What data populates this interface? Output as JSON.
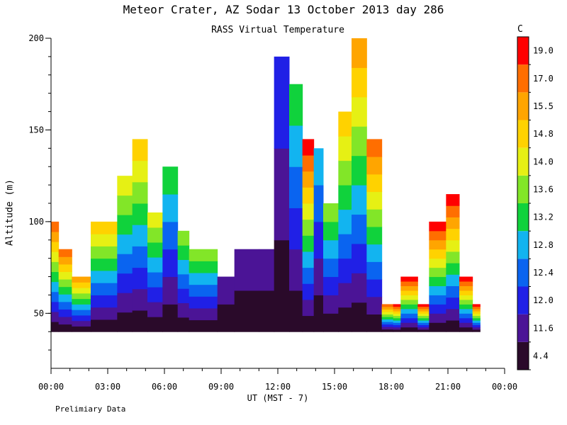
{
  "title": "Meteor Crater, AZ  Sodar  13 October 2013  day 286",
  "footnote": "Prelimiary Data",
  "colors": {
    "bins": [
      "#2a0a2a",
      "#4b1496",
      "#2020e6",
      "#0a64f0",
      "#12b4f0",
      "#10d23c",
      "#82e628",
      "#e6f014",
      "#ffd200",
      "#ffa500",
      "#ff6e00",
      "#ff0000"
    ]
  },
  "chart_data": {
    "type": "heatmap",
    "title": "RASS Virtual Temperature",
    "xlabel": "UT  (MST - 7)",
    "ylabel": "Altitude (m)",
    "xlim": [
      0,
      24
    ],
    "ylim": [
      20,
      200
    ],
    "x_tick_values": [
      0,
      3,
      6,
      9,
      12,
      15,
      18,
      21,
      24
    ],
    "x_tick_labels": [
      "00:00",
      "03:00",
      "06:00",
      "09:00",
      "12:00",
      "15:00",
      "18:00",
      "21:00",
      "00:00"
    ],
    "y_tick_values": [
      50,
      100,
      150,
      200
    ],
    "y_tick_labels": [
      "50",
      "100",
      "150",
      "200"
    ],
    "colorbar": {
      "unit": "C",
      "labels": [
        "4.4",
        "11.6",
        "12.0",
        "12.4",
        "12.8",
        "13.2",
        "13.6",
        "14.0",
        "14.8",
        "15.5",
        "17.0",
        "19.0"
      ]
    },
    "series": [
      {
        "x_range": [
          0.0,
          0.4
        ],
        "top": 100,
        "bin": 10
      },
      {
        "x_range": [
          0.4,
          1.1
        ],
        "top": 85,
        "bin": 10
      },
      {
        "x_range": [
          1.1,
          2.1
        ],
        "top": 70,
        "bin": 9
      },
      {
        "x_range": [
          2.1,
          3.5
        ],
        "top": 100,
        "bin": 8
      },
      {
        "x_range": [
          3.5,
          4.3
        ],
        "top": 125,
        "bin": 7
      },
      {
        "x_range": [
          4.3,
          5.1
        ],
        "top": 145,
        "bin": 8
      },
      {
        "x_range": [
          5.1,
          5.9
        ],
        "top": 105,
        "bin": 7
      },
      {
        "x_range": [
          5.9,
          6.7
        ],
        "top": 130,
        "bin": 5
      },
      {
        "x_range": [
          6.7,
          7.3
        ],
        "top": 95,
        "bin": 6
      },
      {
        "x_range": [
          7.3,
          8.8
        ],
        "top": 85,
        "bin": 6
      },
      {
        "x_range": [
          8.8,
          9.7
        ],
        "top": 70,
        "bin": 1
      },
      {
        "x_range": [
          9.7,
          11.0
        ],
        "top": 85,
        "bin": 1
      },
      {
        "x_range": [
          11.0,
          11.8
        ],
        "top": 85,
        "bin": 1
      },
      {
        "x_range": [
          11.8,
          12.6
        ],
        "top": 190,
        "bin": 2
      },
      {
        "x_range": [
          12.6,
          13.3
        ],
        "top": 175,
        "bin": 5
      },
      {
        "x_range": [
          13.3,
          13.9
        ],
        "top": 145,
        "bin": 11
      },
      {
        "x_range": [
          13.9,
          14.4
        ],
        "top": 140,
        "bin": 4
      },
      {
        "x_range": [
          14.4,
          15.2
        ],
        "top": 110,
        "bin": 6
      },
      {
        "x_range": [
          15.2,
          15.9
        ],
        "top": 160,
        "bin": 8
      },
      {
        "x_range": [
          15.9,
          16.7
        ],
        "top": 200,
        "bin": 9
      },
      {
        "x_range": [
          16.7,
          17.5
        ],
        "top": 145,
        "bin": 10
      },
      {
        "x_range": [
          17.5,
          18.1
        ],
        "top": 55,
        "bin": 10
      },
      {
        "x_range": [
          18.1,
          18.5
        ],
        "top": 55,
        "bin": 11
      },
      {
        "x_range": [
          18.5,
          19.4
        ],
        "top": 70,
        "bin": 11
      },
      {
        "x_range": [
          19.4,
          20.0
        ],
        "top": 55,
        "bin": 11
      },
      {
        "x_range": [
          20.0,
          20.9
        ],
        "top": 100,
        "bin": 11
      },
      {
        "x_range": [
          20.9,
          21.6
        ],
        "top": 115,
        "bin": 11
      },
      {
        "x_range": [
          21.6,
          22.3
        ],
        "top": 70,
        "bin": 11
      },
      {
        "x_range": [
          22.3,
          22.7
        ],
        "top": 55,
        "bin": 11
      }
    ],
    "data_floor": 40
  }
}
